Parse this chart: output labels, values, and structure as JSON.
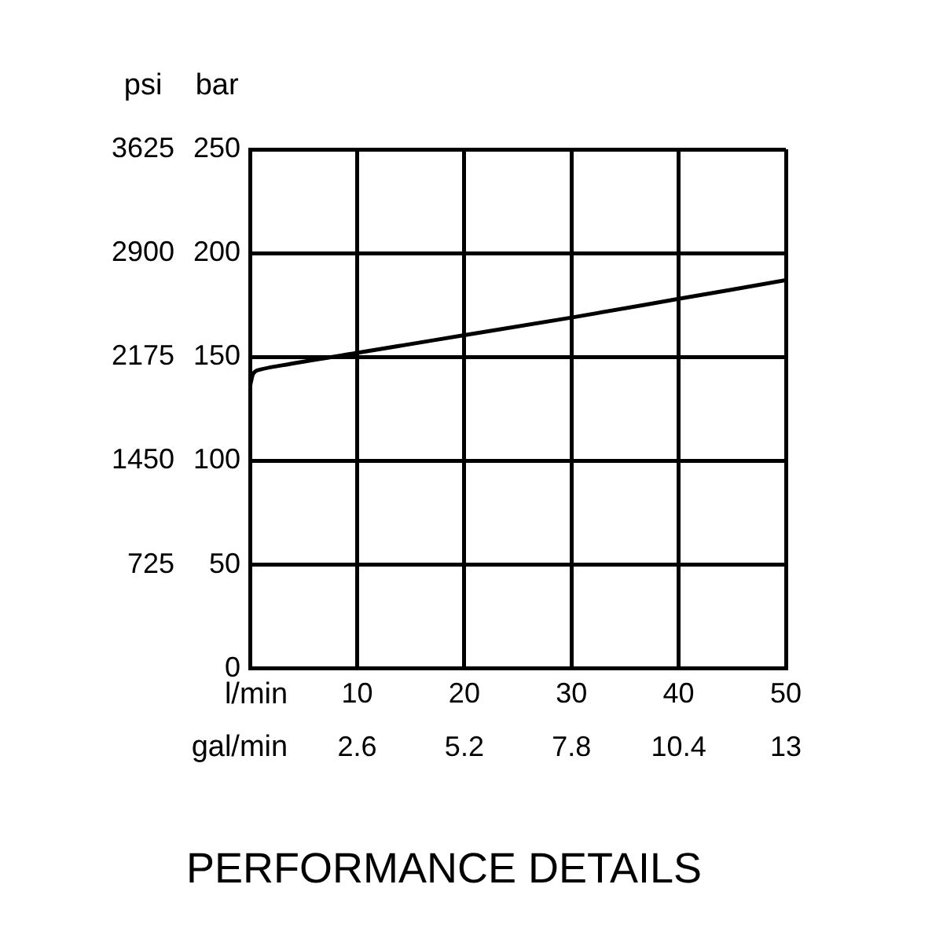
{
  "chart_data": {
    "type": "line",
    "title": "PERFORMANCE DETAILS",
    "xlabel": "l/min",
    "x2label": "gal/min",
    "ylabel": "bar",
    "y2label": "psi",
    "x": [
      0,
      0.3,
      1,
      3,
      10,
      20,
      30,
      40,
      50
    ],
    "series": [
      {
        "color": "#000000",
        "values": [
          136,
          142,
          144,
          146,
          152,
          160.5,
          169,
          178,
          187
        ]
      }
    ],
    "xlim": [
      0,
      50
    ],
    "xticks": [
      10,
      20,
      30,
      40,
      50
    ],
    "x2lim": [
      0,
      13
    ],
    "x2ticks": [
      2.6,
      5.2,
      7.8,
      10.4,
      13
    ],
    "ylim": [
      0,
      250
    ],
    "yticks": [
      0,
      50,
      100,
      150,
      200,
      250
    ],
    "y2lim": [
      0,
      3625
    ],
    "y2ticks": [
      725,
      1450,
      2175,
      2900,
      3625
    ],
    "grid": true,
    "legend": false,
    "marker": "none",
    "line_style": "solid"
  }
}
